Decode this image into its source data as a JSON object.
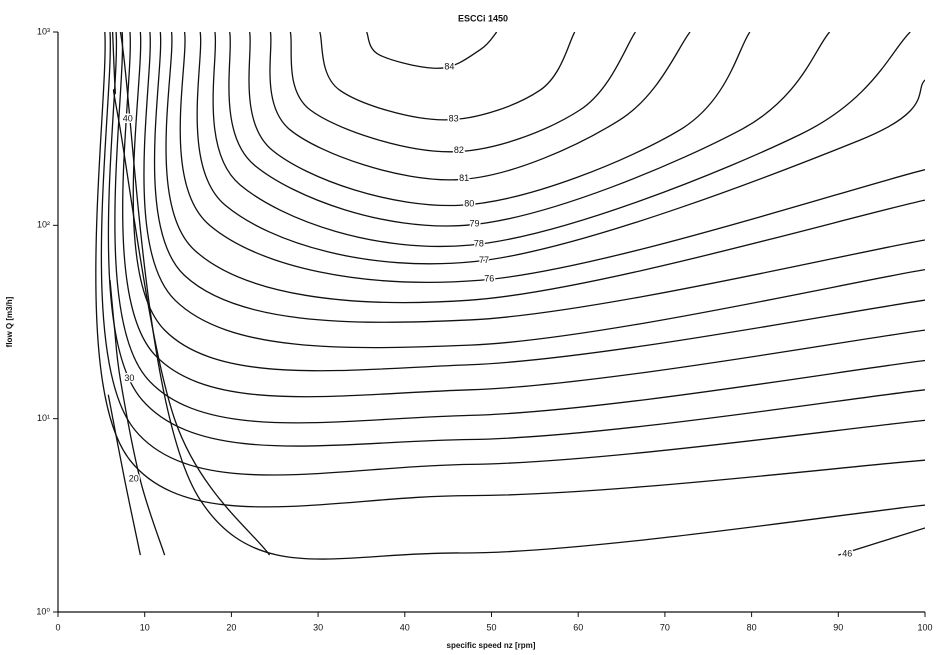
{
  "chart_data": {
    "type": "contour",
    "title": "ESCCi 1450",
    "x_label": "specific speed nz [rpm]",
    "y_label": "flow Q [m3/h]",
    "xlim": [
      0,
      100
    ],
    "xticks": [
      0,
      10,
      20,
      30,
      40,
      50,
      60,
      70,
      80,
      90,
      100
    ],
    "ylim": [
      1,
      1000
    ],
    "log_y": true,
    "yticks": [
      {
        "value": 1,
        "label": "10⁰"
      },
      {
        "value": 10,
        "label": "10¹"
      },
      {
        "value": 100,
        "label": "10²"
      },
      {
        "value": 1000,
        "label": "10³"
      }
    ],
    "color": "#111111",
    "series": [
      {
        "name": "84",
        "x": [
          35.6,
          37.1,
          44.1,
          48.7,
          50.6
        ],
        "values": [
          1000,
          760,
          650,
          810,
          1000
        ]
      },
      {
        "name": "83",
        "x": [
          30.2,
          32.5,
          44.6,
          55.6,
          59.6
        ],
        "values": [
          1000,
          500,
          351,
          500,
          1000
        ]
      },
      {
        "name": "82",
        "x": [
          26.8,
          29.1,
          45.2,
          60.2,
          66.6
        ],
        "values": [
          1000,
          395,
          240,
          395,
          1000
        ]
      },
      {
        "name": "81",
        "x": [
          24.5,
          26.8,
          45.8,
          64.8,
          72.9
        ],
        "values": [
          1000,
          311,
          172,
          351,
          1000
        ]
      },
      {
        "name": "80",
        "x": [
          22.1,
          24.7,
          46.4,
          71.7,
          79.8
        ],
        "values": [
          1000,
          245,
          127,
          311,
          1000
        ]
      },
      {
        "name": "79",
        "x": [
          19.8,
          22.7,
          47.0,
          78.7,
          89.0
        ],
        "values": [
          1000,
          204,
          100,
          311,
          1000
        ]
      },
      {
        "name": "78",
        "x": [
          18.1,
          21.0,
          47.5,
          85.6,
          98.3
        ],
        "values": [
          1000,
          162,
          79,
          295,
          1000
        ]
      },
      {
        "name": "77",
        "x": [
          16.4,
          19.3,
          48.1,
          92.5,
          100
        ],
        "values": [
          1000,
          127,
          65,
          276,
          565
        ]
      },
      {
        "name": "76",
        "x": [
          14.6,
          17.5,
          48.7,
          100
        ],
        "values": [
          1000,
          100,
          52,
          194
        ]
      },
      {
        "x": [
          13.1,
          15.8,
          47.5,
          100
        ],
        "values": [
          1000,
          74,
          41,
          135
        ]
      },
      {
        "x": [
          11.8,
          14.6,
          47.5,
          100
        ],
        "values": [
          1000,
          55,
          32.4,
          84
        ]
      },
      {
        "x": [
          10.6,
          13.5,
          47.5,
          100
        ],
        "values": [
          1000,
          41,
          24.0,
          59
        ]
      },
      {
        "x": [
          9.5,
          12.3,
          47.5,
          100
        ],
        "values": [
          1000,
          28.7,
          19.0,
          41
        ]
      },
      {
        "x": [
          8.3,
          11.2,
          47.5,
          100
        ],
        "values": [
          1000,
          21.3,
          14.1,
          28.7
        ]
      },
      {
        "x": [
          7.4,
          10.4,
          47.5,
          100
        ],
        "values": [
          1000,
          15.9,
          10.4,
          20
        ]
      },
      {
        "x": [
          6.7,
          9.7,
          47.5,
          100
        ],
        "values": [
          1000,
          12.5,
          7.8,
          14.1
        ]
      },
      {
        "x": [
          6.0,
          8.9,
          47.5,
          100
        ],
        "values": [
          1000,
          8.7,
          5.8,
          9.8
        ]
      },
      {
        "x": [
          5.4,
          8.3,
          47.5,
          100
        ],
        "values": [
          1000,
          6.1,
          4.0,
          6.1
        ]
      },
      {
        "x": [
          7.2,
          16.4,
          46.4,
          100
        ],
        "values": [
          1000,
          3.8,
          2.02,
          3.57
        ]
      },
      {
        "name": "40",
        "x": [
          6.3,
          6.6,
          7.0,
          13.5,
          24.4
        ],
        "values": [
          1000,
          500,
          350,
          9.8,
          1.97
        ]
      },
      {
        "name": "30",
        "x": [
          6.0,
          6.5,
          7.2,
          9.5,
          12.3
        ],
        "values": [
          52,
          30,
          15.9,
          4.8,
          1.97
        ]
      },
      {
        "name": "20",
        "x": [
          5.8,
          7.7,
          9.5
        ],
        "values": [
          13.3,
          4.8,
          1.97
        ]
      },
      {
        "name": "46",
        "x": [
          90,
          100
        ],
        "values": [
          1.97,
          2.72
        ]
      }
    ]
  }
}
